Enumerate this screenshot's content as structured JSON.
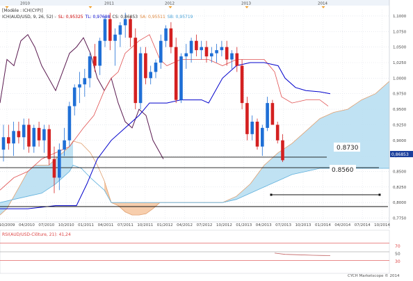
{
  "header": {
    "model_label": "[Modèle : ICH(CYP)]",
    "legend": [
      {
        "text": "ICH(AUD/USD, 9, 26, 52) -",
        "color": "#333333"
      },
      {
        "text": "SL: 0,95325",
        "color": "#cc0000"
      },
      {
        "text": "TL: 0,97698",
        "color": "#0000cc"
      },
      {
        "text": "CS: 0,86853",
        "color": "#333333"
      },
      {
        "text": "SA: 0,95511",
        "color": "#e08a40"
      },
      {
        "text": "SB: 0,95719",
        "color": "#4aa3d8"
      }
    ]
  },
  "years": [
    "2010",
    "2011",
    "2012",
    "2013",
    "2014"
  ],
  "annotations": [
    "0.8730",
    "0.8560"
  ],
  "price_box": "0,86853",
  "sub_panel": {
    "title": "RSI(AUD/USD-Clôture, 21): 41,24",
    "levels": [
      "70",
      "50",
      "30"
    ]
  },
  "footer": "CYCH Marketscope © 2014",
  "colors": {
    "up": "#1f6fd6",
    "down": "#d42020",
    "tenkan": "#e05050",
    "kijun": "#0000cc",
    "chikou": "#5a1a50",
    "cloud_bull": "#b9dff2",
    "cloud_bear": "#f6c9a4",
    "span_a": "#e0a070",
    "span_b": "#5fb0dc"
  },
  "chart_data": {
    "type": "candlestick",
    "symbol": "AUD/USD",
    "timeframe": "monthly",
    "indicator": "ICH(AUD/USD, 9, 26, 52)",
    "ylim": [
      0.77,
      1.11
    ],
    "y_ticks": [
      "1,1000",
      "1,0750",
      "1,0500",
      "1,0250",
      "1,0000",
      "0,9750",
      "0,9500",
      "0,9250",
      "0,9000",
      "0,8750",
      "0,8500",
      "0,8250",
      "0,8000",
      "0,7750"
    ],
    "x_ticks": [
      "10/2009",
      "04/2010",
      "07/2010",
      "10/2010",
      "01/2011",
      "04/2011",
      "07/2011",
      "10/2011",
      "01/2012",
      "04/2012",
      "07/2012",
      "10/2012",
      "01/2013",
      "04/2013",
      "07/2013",
      "10/2013",
      "01/2014",
      "04/2014",
      "07/2014",
      "10/2014"
    ],
    "candles": [
      [
        0.885,
        0.925,
        0.866,
        0.905
      ],
      [
        0.905,
        0.925,
        0.885,
        0.895
      ],
      [
        0.895,
        0.93,
        0.875,
        0.915
      ],
      [
        0.915,
        0.93,
        0.895,
        0.905
      ],
      [
        0.905,
        0.935,
        0.885,
        0.925
      ],
      [
        0.925,
        0.935,
        0.88,
        0.89
      ],
      [
        0.89,
        0.925,
        0.88,
        0.92
      ],
      [
        0.92,
        0.93,
        0.89,
        0.9
      ],
      [
        0.9,
        0.925,
        0.88,
        0.918
      ],
      [
        0.918,
        0.925,
        0.86,
        0.87
      ],
      [
        0.87,
        0.89,
        0.815,
        0.84
      ],
      [
        0.84,
        0.895,
        0.82,
        0.885
      ],
      [
        0.885,
        0.92,
        0.875,
        0.9
      ],
      [
        0.9,
        0.962,
        0.89,
        0.955
      ],
      [
        0.955,
        0.99,
        0.94,
        0.985
      ],
      [
        0.985,
        1.01,
        0.96,
        0.99
      ],
      [
        0.99,
        1.015,
        0.97,
        1.0
      ],
      [
        1.0,
        1.04,
        0.985,
        1.035
      ],
      [
        1.035,
        1.055,
        1.01,
        1.02
      ],
      [
        1.02,
        1.065,
        1.005,
        1.06
      ],
      [
        1.06,
        1.1,
        1.05,
        1.095
      ],
      [
        1.095,
        1.105,
        1.045,
        1.06
      ],
      [
        1.06,
        1.08,
        1.02,
        1.07
      ],
      [
        1.07,
        1.09,
        1.05,
        1.085
      ],
      [
        1.085,
        1.105,
        1.065,
        1.095
      ],
      [
        1.095,
        1.1,
        1.05,
        1.065
      ],
      [
        1.065,
        1.08,
        0.95,
        0.96
      ],
      [
        0.96,
        1.05,
        0.95,
        1.04
      ],
      [
        1.04,
        1.05,
        0.99,
        1.0
      ],
      [
        1.0,
        1.02,
        0.99,
        1.01
      ],
      [
        1.01,
        1.03,
        1.0,
        1.025
      ],
      [
        1.025,
        1.07,
        1.015,
        1.06
      ],
      [
        1.06,
        1.085,
        1.05,
        1.08
      ],
      [
        1.08,
        1.09,
        1.04,
        1.05
      ],
      [
        1.05,
        1.065,
        0.96,
        0.965
      ],
      [
        0.965,
        1.04,
        0.96,
        1.035
      ],
      [
        1.035,
        1.055,
        1.015,
        1.04
      ],
      [
        1.04,
        1.065,
        1.025,
        1.06
      ],
      [
        1.06,
        1.07,
        1.035,
        1.045
      ],
      [
        1.045,
        1.06,
        1.03,
        1.05
      ],
      [
        1.05,
        1.06,
        1.025,
        1.035
      ],
      [
        1.035,
        1.05,
        1.025,
        1.04
      ],
      [
        1.04,
        1.055,
        1.025,
        1.045
      ],
      [
        1.045,
        1.06,
        1.035,
        1.05
      ],
      [
        1.05,
        1.06,
        1.02,
        1.03
      ],
      [
        1.03,
        1.045,
        1.015,
        1.04
      ],
      [
        1.04,
        1.05,
        1.01,
        1.02
      ],
      [
        1.02,
        1.03,
        0.95,
        0.96
      ],
      [
        0.96,
        0.97,
        0.9,
        0.91
      ],
      [
        0.91,
        0.94,
        0.9,
        0.93
      ],
      [
        0.93,
        0.935,
        0.885,
        0.89
      ],
      [
        0.89,
        0.925,
        0.875,
        0.92
      ],
      [
        0.92,
        0.97,
        0.915,
        0.96
      ],
      [
        0.96,
        0.965,
        0.925,
        0.925
      ],
      [
        0.925,
        0.93,
        0.895,
        0.9
      ],
      [
        0.9,
        0.91,
        0.865,
        0.868
      ]
    ],
    "horizontal_levels": [
      0.873,
      0.856,
      0.8125,
      0.7935
    ],
    "current_price": 0.86853,
    "rsi": {
      "title": "RSI(AUD/USD-Clôture, 21)",
      "last": 41.24,
      "levels": [
        70,
        50,
        30
      ]
    }
  }
}
